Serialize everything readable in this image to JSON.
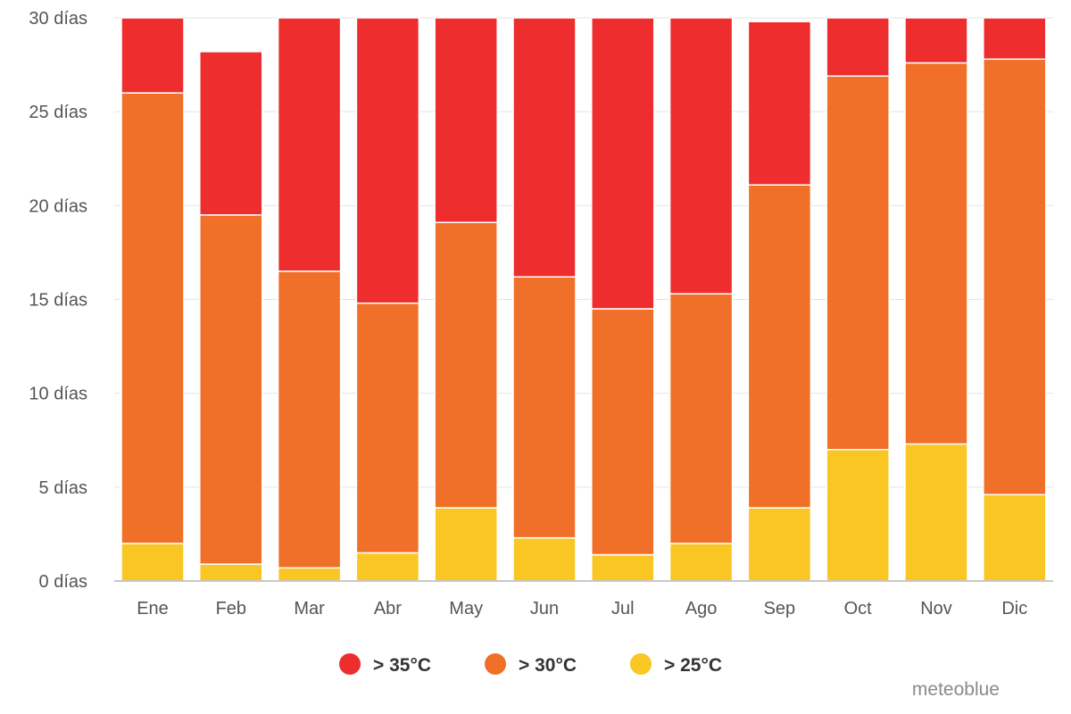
{
  "chart_data": {
    "type": "bar",
    "stacked": true,
    "categories": [
      "Ene",
      "Feb",
      "Mar",
      "Abr",
      "May",
      "Jun",
      "Jul",
      "Ago",
      "Sep",
      "Oct",
      "Nov",
      "Dic"
    ],
    "series": [
      {
        "name": "> 25°C",
        "color": "#f9c623",
        "values": [
          2.0,
          0.9,
          0.7,
          1.5,
          3.9,
          2.3,
          1.4,
          2.0,
          3.9,
          7.0,
          7.3,
          4.6
        ]
      },
      {
        "name": "> 30°C",
        "color": "#f07029",
        "values": [
          24.0,
          18.6,
          15.8,
          13.3,
          15.2,
          13.9,
          13.1,
          13.3,
          17.2,
          19.9,
          20.3,
          23.2
        ]
      },
      {
        "name": "> 35°C",
        "color": "#ee2e2e",
        "values": [
          4.0,
          8.7,
          13.5,
          15.2,
          10.9,
          13.8,
          15.5,
          14.7,
          8.7,
          3.1,
          2.4,
          2.2
        ]
      }
    ],
    "yticks": [
      "0 días",
      "5 días",
      "10 días",
      "15 días",
      "20 días",
      "25 días",
      "30 días"
    ],
    "ytick_values": [
      0,
      5,
      10,
      15,
      20,
      25,
      30
    ],
    "ylim": [
      0,
      30
    ],
    "grid": true,
    "legend_placement": "bottom-center",
    "title": "",
    "xlabel": "",
    "ylabel": ""
  },
  "legend": {
    "items": [
      {
        "label": "> 35°C",
        "color": "#ee2e2e"
      },
      {
        "label": "> 30°C",
        "color": "#f07029"
      },
      {
        "label": "> 25°C",
        "color": "#f9c623"
      }
    ]
  },
  "credit": "meteoblue"
}
